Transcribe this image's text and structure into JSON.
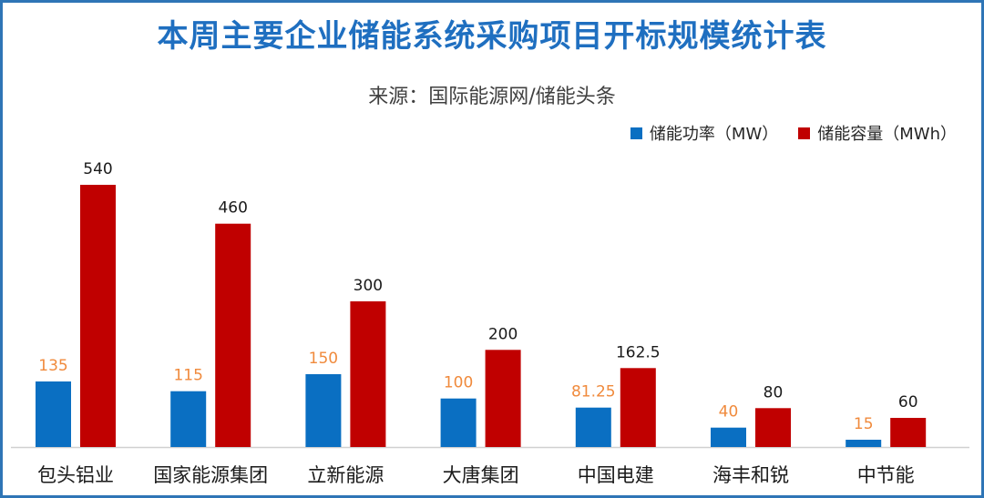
{
  "title": "本周主要企业储能系统采购项目开标规模统计表",
  "source": "来源：国际能源网/储能头条",
  "colors": {
    "power": "#0a6fc2",
    "capacity": "#c00000",
    "power_label": "#f08a3c",
    "capacity_label": "#1a1a1a",
    "axis": "#d0d0d0"
  },
  "chart_data": {
    "type": "bar",
    "title": "本周主要企业储能系统采购项目开标规模统计表",
    "xlabel": "",
    "ylabel": "",
    "ylim": [
      0,
      560
    ],
    "grid": false,
    "legend_position": "top-right",
    "categories": [
      "包头铝业",
      "国家能源集团",
      "立新能源",
      "大唐集团",
      "中国电建",
      "海丰和锐",
      "中节能"
    ],
    "series": [
      {
        "name": "储能功率（MW）",
        "values": [
          135,
          115,
          150,
          100,
          81.25,
          40,
          15
        ],
        "labels": [
          "135",
          "115",
          "150",
          "100",
          "81.25",
          "40",
          "15"
        ]
      },
      {
        "name": "储能容量（MWh）",
        "values": [
          540,
          460,
          300,
          200,
          162.5,
          80,
          60
        ],
        "labels": [
          "540",
          "460",
          "300",
          "200",
          "162.5",
          "80",
          "60"
        ]
      }
    ]
  }
}
